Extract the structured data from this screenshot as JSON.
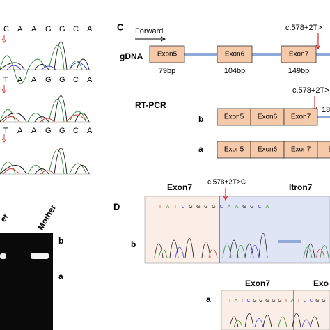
{
  "panel_a": {
    "rows": [
      {
        "bases": [
          "C",
          "A",
          "A",
          "G",
          "G",
          "C",
          "A"
        ]
      },
      {
        "bases": [
          "T",
          "A",
          "A",
          "G",
          "G",
          "C",
          "A"
        ]
      },
      {
        "bases": [
          "T",
          "A",
          "A",
          "G",
          "G",
          "C",
          "A"
        ]
      }
    ]
  },
  "panel_b": {
    "lanes": [
      "er",
      "Mother"
    ],
    "bands": [
      "b",
      "a"
    ]
  },
  "panel_c": {
    "letter": "C",
    "direction": "Forward",
    "gdna": {
      "label": "gDNA",
      "exons": [
        "Exon5",
        "Exon6",
        "Exon7"
      ],
      "sizes": [
        "79bp",
        "104bp",
        "149bp"
      ],
      "mutation": "c.578+2T>"
    },
    "rtpcr": {
      "label": "RT-PCR",
      "mutation": "c.578+2T>",
      "size": "18",
      "b": {
        "label": "b",
        "exons": [
          "Exon5",
          "Exon6",
          "Exon7"
        ]
      },
      "a": {
        "label": "a",
        "exons": [
          "Exon5",
          "Exon6",
          "Exon7",
          "Exo"
        ]
      }
    }
  },
  "panel_d": {
    "letter": "D",
    "b": {
      "label": "b",
      "left": "Exon7",
      "right": "Itron7",
      "mutation": "c.578+2T>C",
      "bases": [
        "T",
        "A",
        "T",
        "C",
        "G",
        "G",
        "G",
        "G",
        "C",
        "A",
        "A",
        "G",
        "G",
        "C",
        "A"
      ]
    },
    "a": {
      "label": "a",
      "left": "Exon7",
      "right": "Exo",
      "bases": [
        "T",
        "A",
        "T",
        "C",
        "G",
        "G",
        "G",
        "G",
        "G",
        "T",
        "A",
        "T",
        "C",
        "C",
        "G",
        "G"
      ]
    }
  }
}
